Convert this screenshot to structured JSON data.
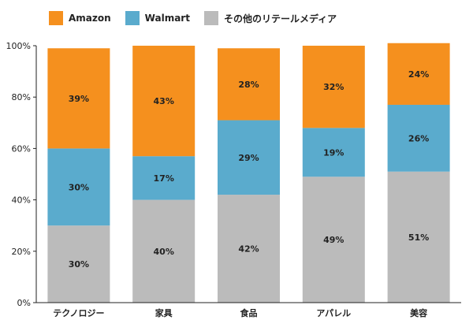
{
  "chart_data": {
    "type": "bar",
    "stacked": true,
    "percent": true,
    "categories": [
      "テクノロジー",
      "家具",
      "食品",
      "アパレル",
      "美容"
    ],
    "series": [
      {
        "name": "その他のリテールメディア",
        "color": "#bbbbbb",
        "values": [
          30,
          40,
          42,
          49,
          51
        ],
        "labels": [
          "30%",
          "40%",
          "42%",
          "49%",
          "51%"
        ]
      },
      {
        "name": "Walmart",
        "color": "#5aabcd",
        "values": [
          30,
          17,
          29,
          19,
          26
        ],
        "labels": [
          "30%",
          "17%",
          "29%",
          "19%",
          "26%"
        ]
      },
      {
        "name": "Amazon",
        "color": "#f5901e",
        "values": [
          39,
          43,
          28,
          32,
          24
        ],
        "labels": [
          "39%",
          "43%",
          "28%",
          "32%",
          "24%"
        ]
      }
    ],
    "yticks": [
      "0%",
      "20%",
      "40%",
      "60%",
      "80%",
      "100%"
    ],
    "ylim": [
      0,
      100
    ],
    "xlabel": "",
    "ylabel": "",
    "grid": false,
    "legend_position": "top-left"
  },
  "legend": [
    {
      "label": "Amazon",
      "color": "#f5901e"
    },
    {
      "label": "Walmart",
      "color": "#5aabcd"
    },
    {
      "label": "その他のリテールメディア",
      "color": "#bbbbbb"
    }
  ]
}
